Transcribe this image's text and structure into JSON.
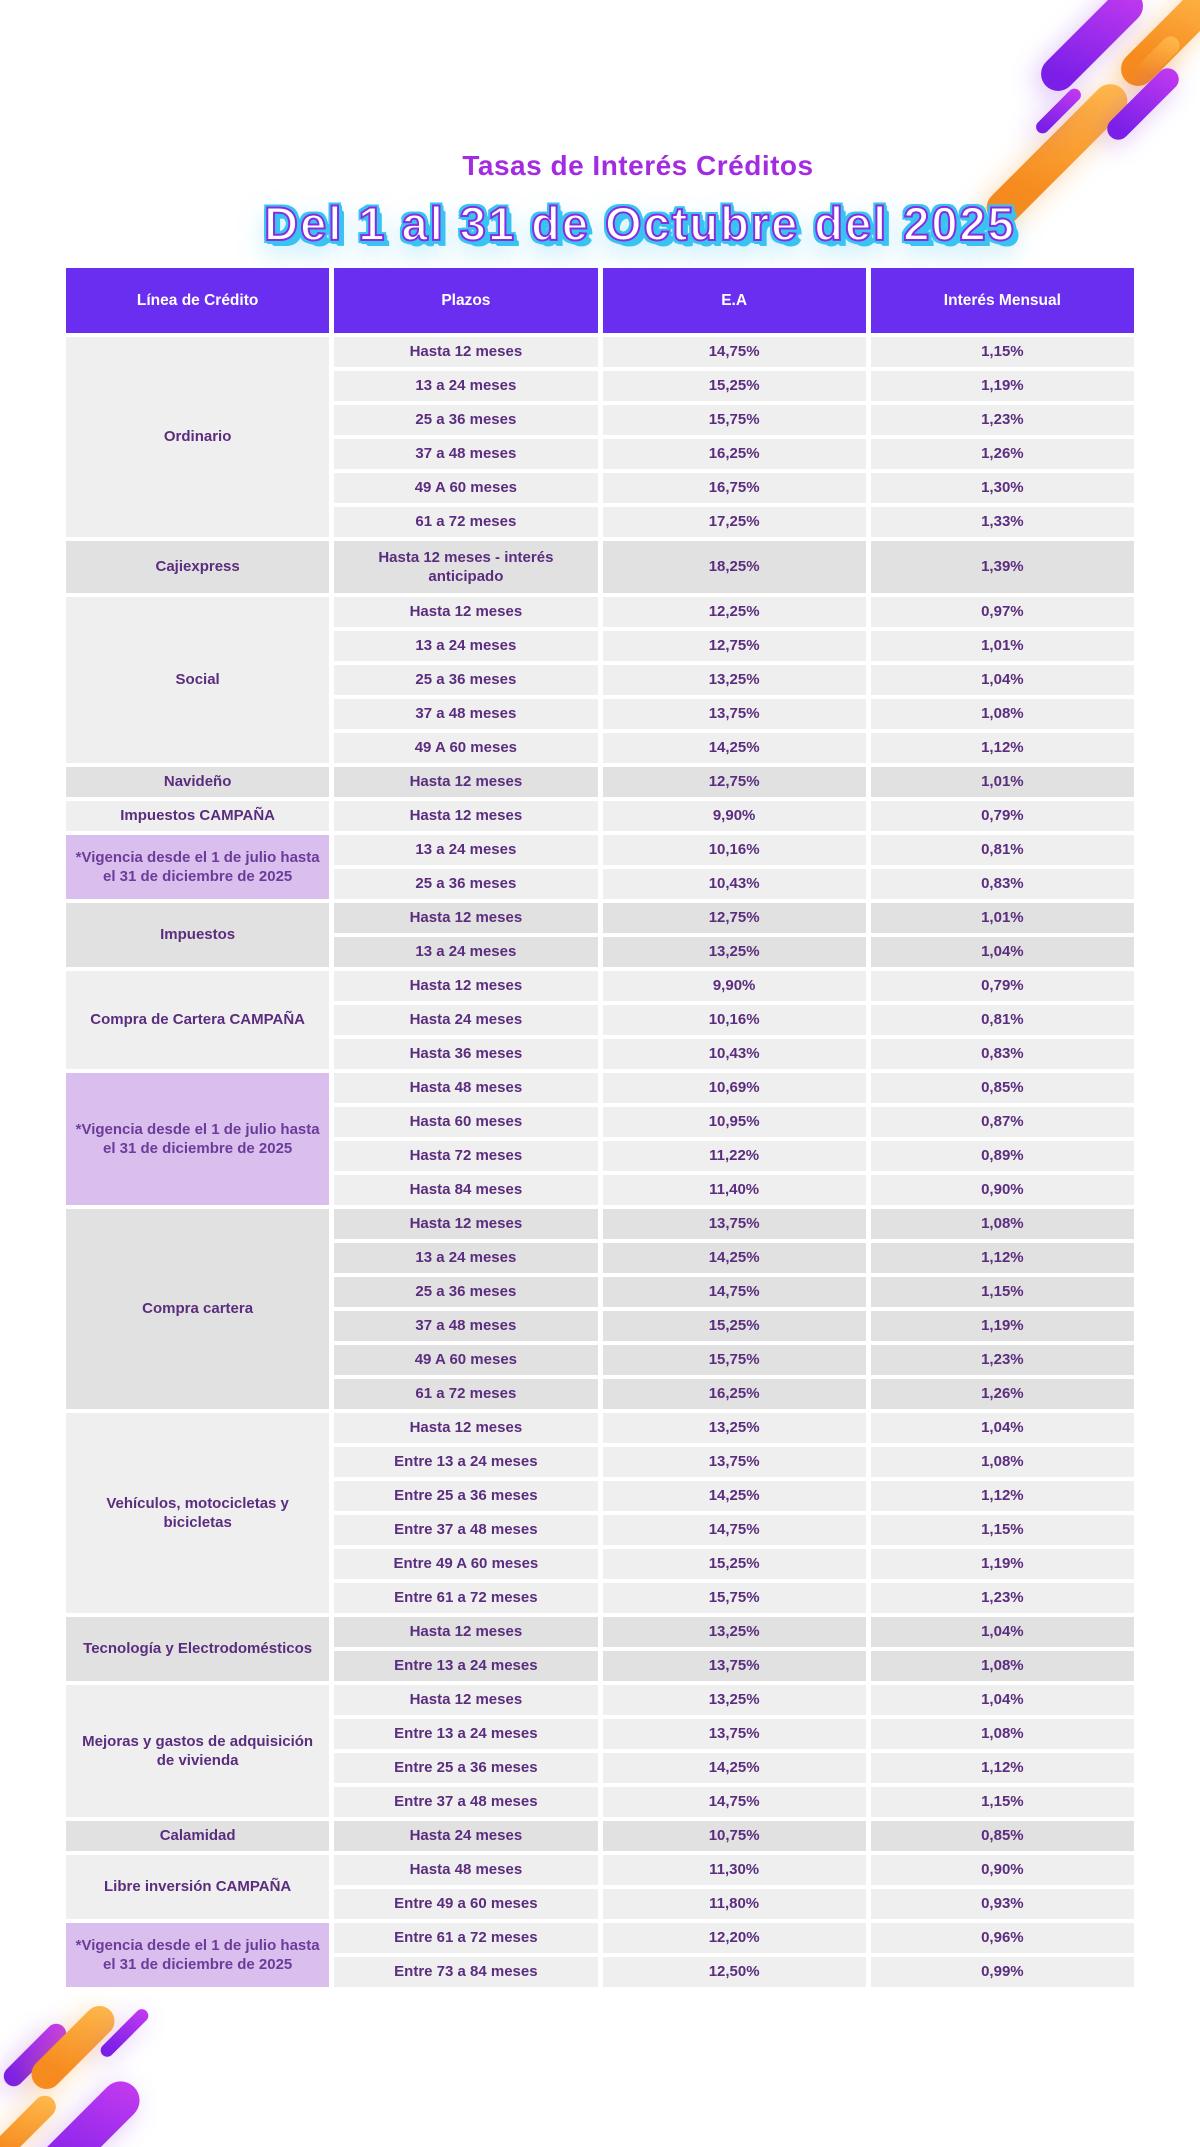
{
  "title": "Tasas de Interés Créditos",
  "subtitle": "Del 1 al 31 de Octubre del 2025",
  "table": {
    "headers": [
      "Línea de Crédito",
      "Plazos",
      "E.A",
      "Interés Mensual"
    ],
    "groups": [
      {
        "label": "Ordinario",
        "shade": "light",
        "rows": [
          [
            "Hasta 12 meses",
            "14,75%",
            "1,15%"
          ],
          [
            "13 a 24 meses",
            "15,25%",
            "1,19%"
          ],
          [
            "25 a 36 meses",
            "15,75%",
            "1,23%"
          ],
          [
            "37 a 48 meses",
            "16,25%",
            "1,26%"
          ],
          [
            "49 A 60 meses",
            "16,75%",
            "1,30%"
          ],
          [
            "61 a 72 meses",
            "17,25%",
            "1,33%"
          ]
        ]
      },
      {
        "label": "Cajiexpress",
        "shade": "dark",
        "tall": true,
        "rows": [
          [
            "Hasta 12 meses - interés anticipado",
            "18,25%",
            "1,39%"
          ]
        ]
      },
      {
        "label": "Social",
        "shade": "light",
        "rows": [
          [
            "Hasta 12 meses",
            "12,25%",
            "0,97%"
          ],
          [
            "13 a 24 meses",
            "12,75%",
            "1,01%"
          ],
          [
            "25 a 36 meses",
            "13,25%",
            "1,04%"
          ],
          [
            "37 a 48 meses",
            "13,75%",
            "1,08%"
          ],
          [
            "49 A 60 meses",
            "14,25%",
            "1,12%"
          ]
        ]
      },
      {
        "label": "Navideño",
        "shade": "dark",
        "rows": [
          [
            "Hasta 12 meses",
            "12,75%",
            "1,01%"
          ]
        ]
      },
      {
        "label": "Impuestos CAMPAÑA",
        "shade": "light",
        "label_span": 1,
        "note": "*Vigencia desde el 1 de julio hasta el 31 de diciembre de 2025",
        "rows": [
          [
            "Hasta 12 meses",
            "9,90%",
            "0,79%"
          ],
          [
            "13 a 24 meses",
            "10,16%",
            "0,81%"
          ],
          [
            "25 a 36 meses",
            "10,43%",
            "0,83%"
          ]
        ]
      },
      {
        "label": "Impuestos",
        "shade": "dark",
        "rows": [
          [
            "Hasta 12 meses",
            "12,75%",
            "1,01%"
          ],
          [
            "13 a 24 meses",
            "13,25%",
            "1,04%"
          ]
        ]
      },
      {
        "label": "Compra de Cartera CAMPAÑA",
        "shade": "light",
        "label_span": 3,
        "note": "*Vigencia desde el 1 de julio hasta el 31 de diciembre de 2025",
        "rows": [
          [
            "Hasta 12 meses",
            "9,90%",
            "0,79%"
          ],
          [
            "Hasta 24 meses",
            "10,16%",
            "0,81%"
          ],
          [
            "Hasta 36 meses",
            "10,43%",
            "0,83%"
          ],
          [
            "Hasta 48 meses",
            "10,69%",
            "0,85%"
          ],
          [
            "Hasta 60 meses",
            "10,95%",
            "0,87%"
          ],
          [
            "Hasta 72 meses",
            "11,22%",
            "0,89%"
          ],
          [
            "Hasta 84 meses",
            "11,40%",
            "0,90%"
          ]
        ]
      },
      {
        "label": "Compra cartera",
        "shade": "dark",
        "rows": [
          [
            "Hasta 12 meses",
            "13,75%",
            "1,08%"
          ],
          [
            "13 a 24 meses",
            "14,25%",
            "1,12%"
          ],
          [
            "25 a 36 meses",
            "14,75%",
            "1,15%"
          ],
          [
            "37 a 48 meses",
            "15,25%",
            "1,19%"
          ],
          [
            "49 A 60 meses",
            "15,75%",
            "1,23%"
          ],
          [
            "61 a 72 meses",
            "16,25%",
            "1,26%"
          ]
        ]
      },
      {
        "label": "Vehículos, motocicletas y bicicletas",
        "shade": "light",
        "rows": [
          [
            "Hasta 12 meses",
            "13,25%",
            "1,04%"
          ],
          [
            "Entre 13 a 24 meses",
            "13,75%",
            "1,08%"
          ],
          [
            "Entre 25 a 36 meses",
            "14,25%",
            "1,12%"
          ],
          [
            "Entre 37 a 48 meses",
            "14,75%",
            "1,15%"
          ],
          [
            "Entre 49 A 60 meses",
            "15,25%",
            "1,19%"
          ],
          [
            "Entre 61 a 72 meses",
            "15,75%",
            "1,23%"
          ]
        ]
      },
      {
        "label": "Tecnología y Electrodomésticos",
        "shade": "dark",
        "rows": [
          [
            "Hasta 12 meses",
            "13,25%",
            "1,04%"
          ],
          [
            "Entre 13 a 24 meses",
            "13,75%",
            "1,08%"
          ]
        ]
      },
      {
        "label": "Mejoras y gastos de adquisición de vivienda",
        "shade": "light",
        "rows": [
          [
            "Hasta 12 meses",
            "13,25%",
            "1,04%"
          ],
          [
            "Entre 13 a 24 meses",
            "13,75%",
            "1,08%"
          ],
          [
            "Entre 25 a 36 meses",
            "14,25%",
            "1,12%"
          ],
          [
            "Entre 37 a 48 meses",
            "14,75%",
            "1,15%"
          ]
        ]
      },
      {
        "label": "Calamidad",
        "shade": "dark",
        "rows": [
          [
            "Hasta 24 meses",
            "10,75%",
            "0,85%"
          ]
        ]
      },
      {
        "label": "Libre inversión CAMPAÑA",
        "shade": "light",
        "label_span": 2,
        "note": "*Vigencia desde el 1 de julio hasta el 31 de diciembre de 2025",
        "rows": [
          [
            "Hasta 48 meses",
            "11,30%",
            "0,90%"
          ],
          [
            "Entre 49 a 60 meses",
            "11,80%",
            "0,93%"
          ],
          [
            "Entre 61 a 72 meses",
            "12,20%",
            "0,96%"
          ],
          [
            "Entre 73 a 84 meses",
            "12,50%",
            "0,99%"
          ]
        ]
      }
    ]
  },
  "colors": {
    "header_bg": "#6A2EF0",
    "row_light": "#F0EFF0",
    "row_dark": "#E2E1E2",
    "note_bg": "#D9BEEE",
    "table_text": "#5B2D7E",
    "title_text": "#A32CE0",
    "subtitle_fill": "#FFFFFF",
    "subtitle_outline": "#8A2BE2",
    "subtitle_glow": "#38C3F2",
    "decor_orange": "#F68B1F",
    "decor_purple": "#9B30E8"
  }
}
